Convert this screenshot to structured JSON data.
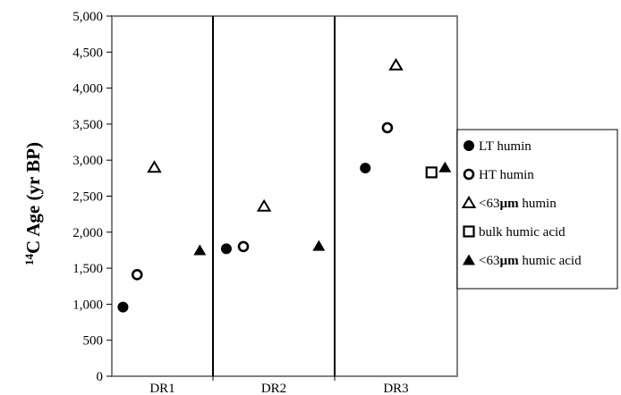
{
  "chart_data": {
    "type": "scatter",
    "title": "",
    "ylabel_sup": "14",
    "ylabel_main": "C Age (yr BP)",
    "xlabel": "",
    "ylim": [
      0,
      5000
    ],
    "yticks": [
      "0",
      "500",
      "1,000",
      "1,500",
      "2,000",
      "2,500",
      "3,000",
      "3,500",
      "4,000",
      "4,500",
      "5,000"
    ],
    "categories": [
      "DR1",
      "DR2",
      "DR3"
    ],
    "series": [
      {
        "name": "LT humin",
        "marker": "filled-circle",
        "points": [
          {
            "cat": "DR1",
            "y": 960
          },
          {
            "cat": "DR2",
            "y": 1770
          },
          {
            "cat": "DR3",
            "y": 2890
          }
        ]
      },
      {
        "name": "HT humin",
        "marker": "open-circle",
        "points": [
          {
            "cat": "DR1",
            "y": 1410
          },
          {
            "cat": "DR2",
            "y": 1800
          },
          {
            "cat": "DR3",
            "y": 3450
          }
        ]
      },
      {
        "name_prefix": "<63",
        "name_unit": "µm",
        "name_suffix": " humin",
        "marker": "open-triangle",
        "points": [
          {
            "cat": "DR1",
            "y": 2900
          },
          {
            "cat": "DR2",
            "y": 2360
          },
          {
            "cat": "DR3",
            "y": 4320
          }
        ]
      },
      {
        "name": "bulk humic acid",
        "marker": "open-square",
        "points": [
          {
            "cat": "DR3",
            "y": 2830
          }
        ]
      },
      {
        "name_prefix": "<63",
        "name_unit": "µm",
        "name_suffix": " humic acid",
        "marker": "filled-triangle",
        "points": [
          {
            "cat": "DR1",
            "y": 1750
          },
          {
            "cat": "DR2",
            "y": 1810
          },
          {
            "cat": "DR3",
            "y": 2900
          }
        ]
      }
    ],
    "legend_position": "right",
    "grid": false
  }
}
